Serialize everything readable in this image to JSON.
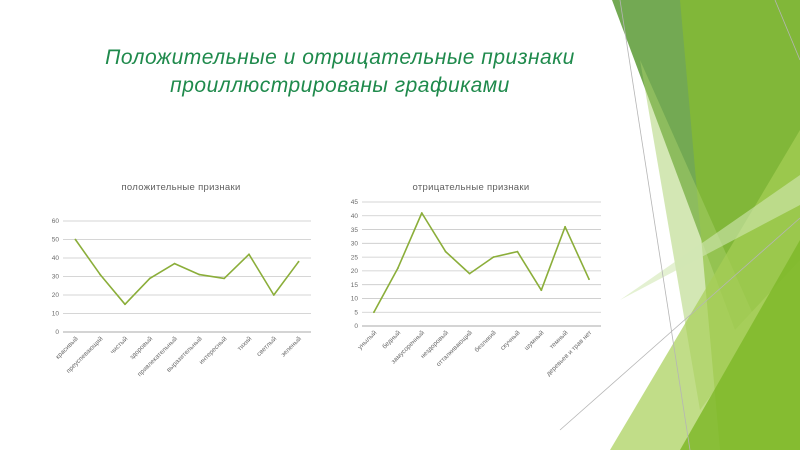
{
  "slide": {
    "title": "Положительные и отрицательные признаки проиллюстрированы графиками",
    "accent": "#1f8a4c"
  },
  "chart_data": [
    {
      "type": "line",
      "title": "положительные признаки",
      "categories": [
        "красивый",
        "преуспевающий",
        "чистый",
        "здоровый",
        "привлекательный",
        "выразительный",
        "интересный",
        "тихий",
        "светлый",
        "зеленый"
      ],
      "series": [
        {
          "values": [
            50,
            31,
            15,
            29,
            37,
            31,
            29,
            42,
            20,
            38
          ],
          "color": "#8bae3a"
        }
      ],
      "yticks": [
        "0",
        "10",
        "20",
        "30",
        "40",
        "50",
        "60"
      ],
      "ylim": [
        0,
        60
      ],
      "grid": true,
      "legend": "none"
    },
    {
      "type": "line",
      "title": "отрицательные признаки",
      "categories": [
        "унылый",
        "бедный",
        "замусоренный",
        "нездоровый",
        "отталкивающий",
        "безликий",
        "скучный",
        "шумный",
        "темный",
        "деревьев и трав нет"
      ],
      "series": [
        {
          "values": [
            5,
            21,
            41,
            27,
            19,
            25,
            27,
            13,
            36,
            17
          ],
          "color": "#8bae3a"
        }
      ],
      "yticks": [
        "0",
        "5",
        "10",
        "15",
        "20",
        "25",
        "30",
        "35",
        "40",
        "45"
      ],
      "ylim": [
        0,
        45
      ],
      "grid": true,
      "legend": "none"
    }
  ]
}
